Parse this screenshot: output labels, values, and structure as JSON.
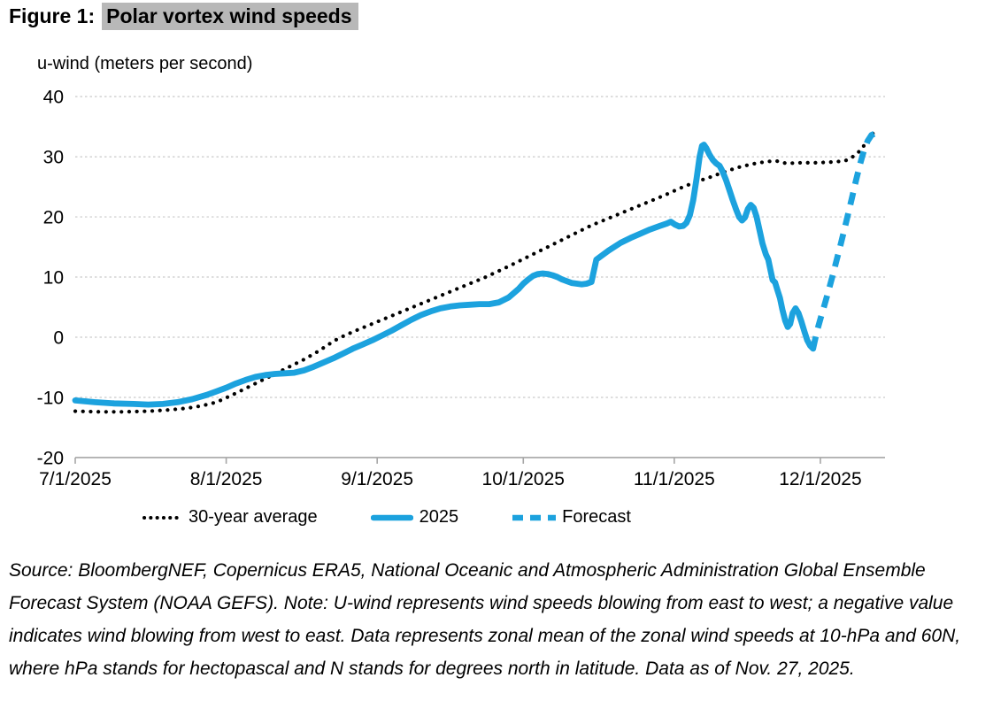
{
  "title": {
    "prefix": "Figure 1:",
    "highlight": "Polar vortex wind speeds"
  },
  "axis_title": "u-wind (meters per second)",
  "colors": {
    "accent_blue": "#1CA2DE",
    "avg_black": "#000000",
    "grid": "#c9c9c9",
    "axis": "#a6a6a6",
    "highlight_bg": "#b8b8b8"
  },
  "legend": {
    "avg": "30-year average",
    "y2025": "2025",
    "forecast": "Forecast"
  },
  "source_note": "Source: BloombergNEF, Copernicus ERA5, National Oceanic and Atmospheric Administration Global Ensemble Forecast System (NOAA GEFS). Note: U-wind represents wind speeds blowing from east to west; a negative value indicates wind blowing from west to east. Data represents zonal mean of the zonal wind speeds at 10-hPa and 60N, where hPa stands for hectopascal and N stands for degrees north in latitude. Data as of Nov. 27, 2025.",
  "chart_data": {
    "type": "line",
    "title": "Polar vortex wind speeds",
    "xlabel": "",
    "ylabel": "u-wind (meters per second)",
    "ylim": [
      -20,
      40
    ],
    "grid": "horizontal dashed",
    "legend_position": "bottom",
    "x_unit": "days since 7/1/2025",
    "y_ticks": [
      40,
      30,
      20,
      10,
      0,
      -10,
      -20
    ],
    "y_gridlines_dashed": [
      40,
      30,
      20,
      10,
      0,
      -10
    ],
    "x_ticks": [
      {
        "label": "7/1/2025",
        "day": 0
      },
      {
        "label": "8/1/2025",
        "day": 31
      },
      {
        "label": "9/1/2025",
        "day": 62
      },
      {
        "label": "10/1/2025",
        "day": 92
      },
      {
        "label": "11/1/2025",
        "day": 123
      },
      {
        "label": "12/1/2025",
        "day": 153
      }
    ],
    "series": [
      {
        "name": "30-year average",
        "style": "dotted",
        "color_key": "avg_black",
        "points": [
          [
            0,
            -12.3
          ],
          [
            5,
            -12.4
          ],
          [
            10,
            -12.4
          ],
          [
            15,
            -12.3
          ],
          [
            19,
            -12.1
          ],
          [
            23,
            -11.8
          ],
          [
            26,
            -11.4
          ],
          [
            29,
            -10.8
          ],
          [
            32,
            -9.7
          ],
          [
            35,
            -8.5
          ],
          [
            38,
            -7.3
          ],
          [
            41,
            -6.1
          ],
          [
            44,
            -4.9
          ],
          [
            47,
            -3.7
          ],
          [
            50,
            -2.3
          ],
          [
            52,
            -1.2
          ],
          [
            54,
            -0.2
          ],
          [
            57,
            0.9
          ],
          [
            60,
            1.9
          ],
          [
            63,
            2.9
          ],
          [
            66,
            3.9
          ],
          [
            69,
            4.9
          ],
          [
            72,
            5.9
          ],
          [
            75,
            6.9
          ],
          [
            78,
            7.9
          ],
          [
            81,
            8.9
          ],
          [
            84,
            9.9
          ],
          [
            88,
            11.4
          ],
          [
            91,
            12.6
          ],
          [
            94,
            13.8
          ],
          [
            97,
            15.0
          ],
          [
            100,
            16.2
          ],
          [
            103,
            17.4
          ],
          [
            106,
            18.6
          ],
          [
            109,
            19.6
          ],
          [
            112,
            20.6
          ],
          [
            115,
            21.6
          ],
          [
            118,
            22.6
          ],
          [
            121,
            23.6
          ],
          [
            124,
            24.7
          ],
          [
            127,
            25.7
          ],
          [
            130,
            26.5
          ],
          [
            133,
            27.4
          ],
          [
            136,
            28.2
          ],
          [
            139,
            28.8
          ],
          [
            142,
            29.2
          ],
          [
            144,
            29.3
          ],
          [
            146,
            28.9
          ],
          [
            149,
            29.0
          ],
          [
            152,
            29.0
          ],
          [
            155,
            29.1
          ],
          [
            158,
            29.3
          ],
          [
            159.5,
            29.9
          ],
          [
            161,
            30.9
          ],
          [
            162.3,
            32.2
          ],
          [
            163.4,
            33.4
          ],
          [
            164.2,
            34.4
          ]
        ]
      },
      {
        "name": "2025",
        "style": "solid",
        "color_key": "accent_blue",
        "points": [
          [
            0,
            -10.5
          ],
          [
            4,
            -10.8
          ],
          [
            8,
            -11.0
          ],
          [
            12,
            -11.1
          ],
          [
            15,
            -11.2
          ],
          [
            18,
            -11.1
          ],
          [
            21,
            -10.8
          ],
          [
            24,
            -10.3
          ],
          [
            27,
            -9.6
          ],
          [
            29,
            -9.0
          ],
          [
            31,
            -8.4
          ],
          [
            33,
            -7.7
          ],
          [
            35,
            -7.1
          ],
          [
            37,
            -6.6
          ],
          [
            39,
            -6.3
          ],
          [
            41,
            -6.1
          ],
          [
            43,
            -6.0
          ],
          [
            45,
            -5.9
          ],
          [
            47,
            -5.5
          ],
          [
            49,
            -4.9
          ],
          [
            51,
            -4.2
          ],
          [
            53,
            -3.5
          ],
          [
            55,
            -2.7
          ],
          [
            57,
            -1.9
          ],
          [
            59,
            -1.2
          ],
          [
            61,
            -0.5
          ],
          [
            63,
            0.3
          ],
          [
            65,
            1.1
          ],
          [
            67,
            2.0
          ],
          [
            69,
            2.9
          ],
          [
            71,
            3.7
          ],
          [
            73,
            4.3
          ],
          [
            75,
            4.8
          ],
          [
            77,
            5.1
          ],
          [
            79,
            5.3
          ],
          [
            81,
            5.4
          ],
          [
            83,
            5.5
          ],
          [
            85,
            5.5
          ],
          [
            87,
            5.8
          ],
          [
            89,
            6.6
          ],
          [
            91,
            8.0
          ],
          [
            92,
            8.9
          ],
          [
            93,
            9.6
          ],
          [
            94,
            10.2
          ],
          [
            95,
            10.5
          ],
          [
            96,
            10.6
          ],
          [
            97,
            10.5
          ],
          [
            98,
            10.3
          ],
          [
            99,
            10.0
          ],
          [
            100,
            9.6
          ],
          [
            101,
            9.3
          ],
          [
            102,
            9.0
          ],
          [
            103,
            8.9
          ],
          [
            104,
            8.8
          ],
          [
            105,
            8.9
          ],
          [
            106,
            9.2
          ],
          [
            107,
            12.9
          ],
          [
            109.5,
            14.4
          ],
          [
            112,
            15.7
          ],
          [
            114,
            16.5
          ],
          [
            116,
            17.2
          ],
          [
            118,
            17.9
          ],
          [
            120,
            18.5
          ],
          [
            121.5,
            18.9
          ],
          [
            122.3,
            19.2
          ],
          [
            123.2,
            18.7
          ],
          [
            124,
            18.4
          ],
          [
            124.8,
            18.5
          ],
          [
            125.5,
            19.0
          ],
          [
            126.2,
            20.3
          ],
          [
            126.9,
            22.8
          ],
          [
            127.6,
            26.5
          ],
          [
            128.2,
            30.0
          ],
          [
            128.7,
            31.8
          ],
          [
            129.1,
            32.0
          ],
          [
            129.6,
            31.4
          ],
          [
            130.2,
            30.4
          ],
          [
            130.9,
            29.5
          ],
          [
            131.6,
            28.9
          ],
          [
            132.3,
            28.5
          ],
          [
            132.9,
            27.6
          ],
          [
            133.6,
            26.2
          ],
          [
            134.3,
            24.5
          ],
          [
            135,
            22.8
          ],
          [
            135.7,
            21.2
          ],
          [
            136.3,
            20.0
          ],
          [
            136.9,
            19.4
          ],
          [
            137.5,
            19.9
          ],
          [
            138.1,
            21.3
          ],
          [
            138.7,
            22.0
          ],
          [
            139.3,
            21.5
          ],
          [
            139.9,
            20.0
          ],
          [
            140.5,
            17.8
          ],
          [
            141.1,
            15.6
          ],
          [
            141.8,
            13.8
          ],
          [
            142.3,
            12.9
          ],
          [
            142.8,
            11.0
          ],
          [
            143.2,
            9.5
          ],
          [
            143.7,
            9.1
          ],
          [
            144.2,
            7.8
          ],
          [
            144.7,
            6.5
          ],
          [
            145.2,
            4.6
          ],
          [
            145.8,
            2.7
          ],
          [
            146.3,
            1.7
          ],
          [
            146.8,
            2.2
          ],
          [
            147.3,
            4.0
          ],
          [
            147.9,
            4.8
          ],
          [
            148.5,
            4.0
          ],
          [
            149.1,
            2.6
          ],
          [
            149.7,
            1.0
          ],
          [
            150.3,
            -0.5
          ],
          [
            150.9,
            -1.4
          ],
          [
            151.5,
            -1.9
          ]
        ]
      },
      {
        "name": "Forecast",
        "style": "dashed",
        "color_key": "accent_blue",
        "points": [
          [
            151.5,
            -1.9
          ],
          [
            152.3,
            1.0
          ],
          [
            153.1,
            3.3
          ],
          [
            153.9,
            5.5
          ],
          [
            154.7,
            7.8
          ],
          [
            155.5,
            10.2
          ],
          [
            156.3,
            12.7
          ],
          [
            157.1,
            15.2
          ],
          [
            157.9,
            17.8
          ],
          [
            158.7,
            20.5
          ],
          [
            159.5,
            23.2
          ],
          [
            160.3,
            26.0
          ],
          [
            161.1,
            28.6
          ],
          [
            161.9,
            30.9
          ],
          [
            162.7,
            32.6
          ],
          [
            163.5,
            33.6
          ],
          [
            164.3,
            33.9
          ],
          [
            165,
            33.4
          ]
        ]
      }
    ]
  }
}
